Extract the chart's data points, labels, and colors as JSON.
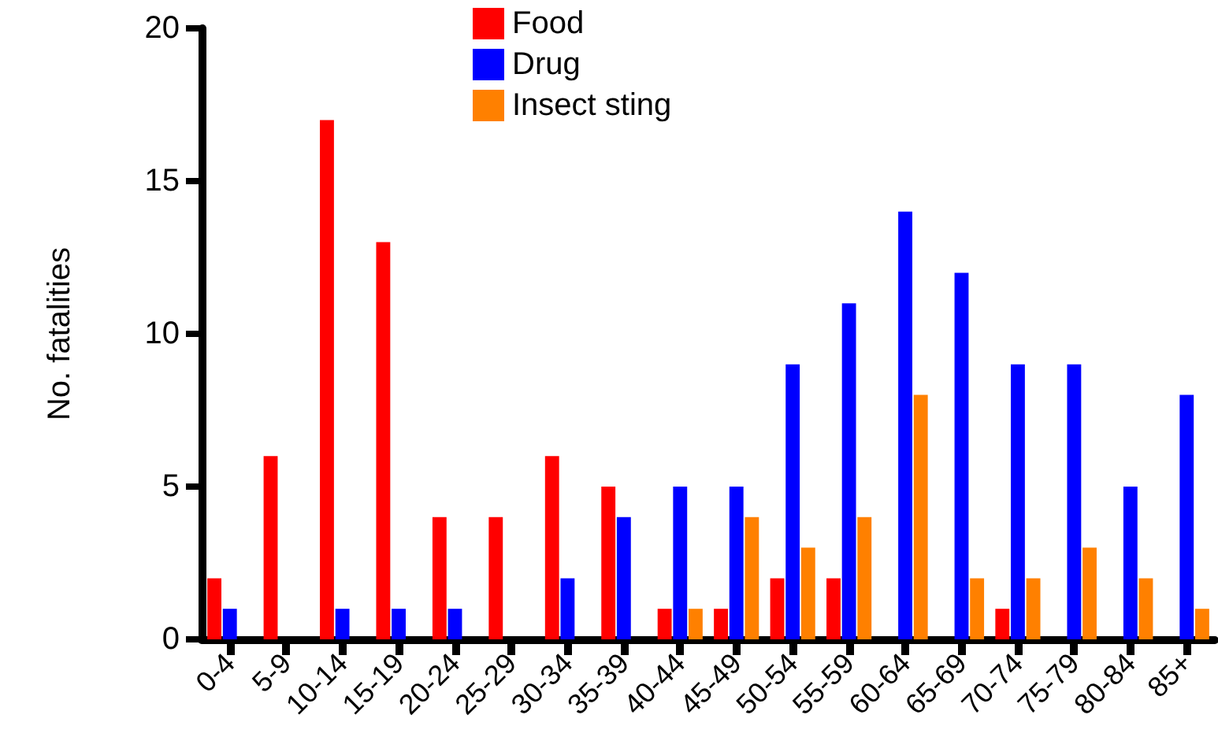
{
  "chart_data": {
    "type": "bar",
    "ylabel": "No. fatalities",
    "categories": [
      "0-4",
      "5-9",
      "10-14",
      "15-19",
      "20-24",
      "25-29",
      "30-34",
      "35-39",
      "40-44",
      "45-49",
      "50-54",
      "55-59",
      "60-64",
      "65-69",
      "70-74",
      "75-79",
      "80-84",
      "85+"
    ],
    "series": [
      {
        "name": "Food",
        "color": "#ff0000",
        "values": [
          2,
          6,
          17,
          13,
          4,
          4,
          6,
          5,
          1,
          1,
          2,
          2,
          0,
          0,
          1,
          0,
          0,
          0
        ]
      },
      {
        "name": "Drug",
        "color": "#0000ff",
        "values": [
          1,
          0,
          1,
          1,
          1,
          0,
          2,
          4,
          5,
          5,
          9,
          11,
          14,
          12,
          9,
          9,
          5,
          8
        ]
      },
      {
        "name": "Insect sting",
        "color": "#ff8000",
        "values": [
          0,
          0,
          0,
          0,
          0,
          0,
          0,
          0,
          1,
          4,
          3,
          4,
          8,
          2,
          2,
          3,
          2,
          1
        ]
      }
    ],
    "ylim": [
      0,
      20
    ],
    "yticks": [
      0,
      5,
      10,
      15,
      20
    ],
    "grid": false,
    "legend": "top"
  }
}
